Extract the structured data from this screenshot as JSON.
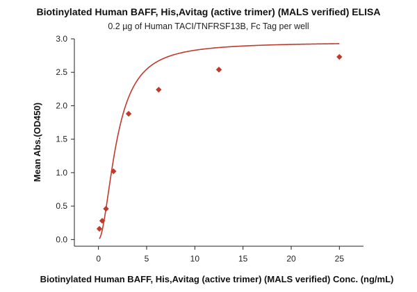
{
  "chart_data": {
    "type": "scatter",
    "title": "Biotinylated Human BAFF, His,Avitag (active trimer) (MALS verified) ELISA",
    "subtitle": "0.2 µg of Human TACI/TNFRSF13B, Fc Tag per well",
    "xlabel": "Biotinylated Human BAFF, His,Avitag (active trimer) (MALS verified) Conc. (ng/mL)",
    "ylabel": "Mean Abs.(OD450)",
    "xlim": [
      -2.5,
      27.5
    ],
    "ylim": [
      -0.1,
      3.0
    ],
    "xticks": [
      0,
      5,
      10,
      15,
      20,
      25
    ],
    "yticks": [
      0.0,
      0.5,
      1.0,
      1.5,
      2.0,
      2.5,
      3.0
    ],
    "xtick_labels": [
      "0",
      "5",
      "10",
      "15",
      "20",
      "25"
    ],
    "ytick_labels": [
      "0.0",
      "0.5",
      "1.0",
      "1.5",
      "2.0",
      "2.5",
      "3.0"
    ],
    "color": "#c0392b",
    "points": [
      {
        "x": 0.1,
        "y": 0.16
      },
      {
        "x": 0.39,
        "y": 0.28
      },
      {
        "x": 0.78,
        "y": 0.46
      },
      {
        "x": 1.56,
        "y": 1.02
      },
      {
        "x": 3.13,
        "y": 1.88
      },
      {
        "x": 6.25,
        "y": 2.24
      },
      {
        "x": 12.5,
        "y": 2.54
      },
      {
        "x": 25,
        "y": 2.73
      }
    ],
    "fit": {
      "type": "4PL",
      "bottom": 0.0,
      "top": 2.95,
      "ec50": 1.9,
      "hill": 1.9
    },
    "grid": false,
    "legend": "none"
  }
}
